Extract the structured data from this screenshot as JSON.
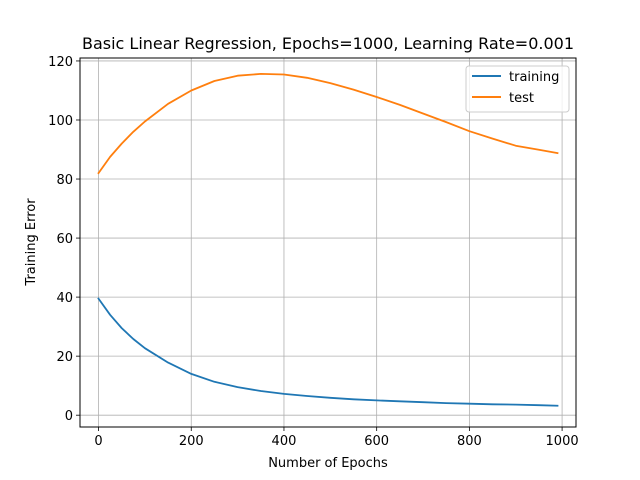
{
  "chart_data": {
    "type": "line",
    "title": "Basic Linear Regression, Epochs=1000, Learning Rate=0.001",
    "xlabel": "Number of Epochs",
    "ylabel": "Training Error",
    "xlim": [
      -40,
      1030
    ],
    "ylim": [
      -4,
      121
    ],
    "xticks": [
      0,
      200,
      400,
      600,
      800,
      1000
    ],
    "yticks": [
      0,
      20,
      40,
      60,
      80,
      100,
      120
    ],
    "grid": true,
    "legend_position": "upper right",
    "series": [
      {
        "name": "training",
        "color": "#1f77b4",
        "x": [
          0,
          25,
          50,
          75,
          100,
          150,
          200,
          250,
          300,
          350,
          400,
          450,
          500,
          550,
          600,
          650,
          700,
          750,
          800,
          850,
          900,
          950,
          990
        ],
        "y": [
          39.5,
          34.0,
          29.5,
          25.8,
          22.7,
          17.8,
          14.0,
          11.3,
          9.5,
          8.2,
          7.2,
          6.5,
          5.9,
          5.4,
          5.0,
          4.7,
          4.4,
          4.1,
          3.9,
          3.7,
          3.6,
          3.4,
          3.2
        ]
      },
      {
        "name": "test",
        "color": "#ff7f0e",
        "x": [
          0,
          25,
          50,
          75,
          100,
          150,
          200,
          250,
          300,
          350,
          400,
          450,
          500,
          550,
          600,
          650,
          700,
          750,
          800,
          850,
          900,
          950,
          990
        ],
        "y": [
          82.0,
          87.5,
          92.0,
          96.0,
          99.5,
          105.5,
          110.0,
          113.2,
          115.0,
          115.6,
          115.4,
          114.3,
          112.5,
          110.3,
          107.8,
          105.1,
          102.2,
          99.3,
          96.2,
          93.7,
          91.3,
          89.9,
          88.8
        ]
      }
    ]
  }
}
